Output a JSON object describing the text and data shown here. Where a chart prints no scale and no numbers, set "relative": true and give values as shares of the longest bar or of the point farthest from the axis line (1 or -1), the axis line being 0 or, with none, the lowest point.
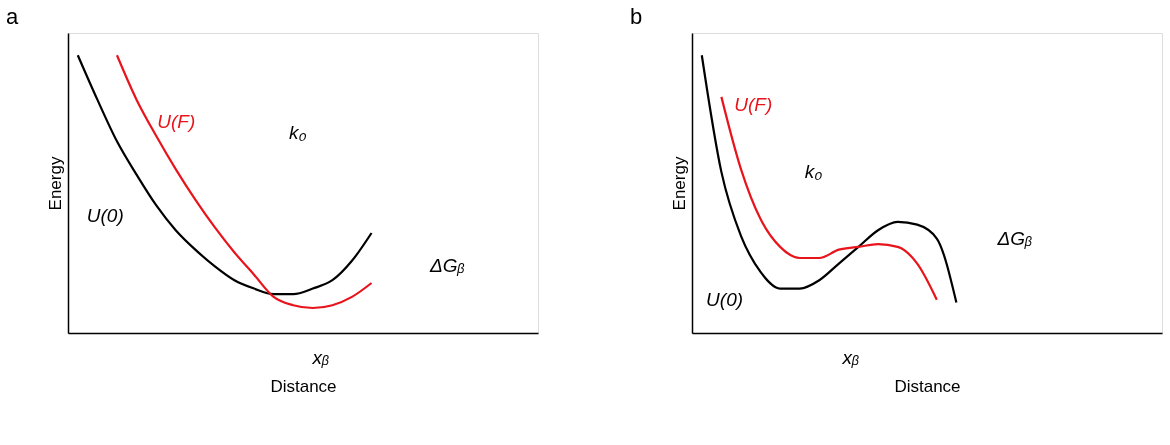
{
  "chart_data": [
    {
      "type": "line",
      "title": "a",
      "xlabel": "Distance",
      "ylabel": "Energy",
      "relative": true,
      "legend": false,
      "grid": false,
      "categories": [
        null,
        null,
        null,
        null,
        null,
        null,
        null,
        null,
        null,
        null,
        null,
        null,
        null,
        null,
        null,
        null,
        null,
        null,
        null,
        null,
        null,
        null,
        null,
        null
      ],
      "series": [
        {
          "name": "U(0)",
          "color": "#000000",
          "values": [
            1.0,
            0.84,
            0.69,
            0.57,
            0.46,
            0.37,
            0.3,
            0.24,
            0.19,
            0.16,
            0.14,
            0.14,
            0.16,
            0.19,
            0.26,
            0.36,
            null,
            null,
            null,
            null,
            null,
            null,
            null,
            null
          ]
        },
        {
          "name": "U(F)",
          "color": "#e8141c",
          "values": [
            null,
            null,
            1.0,
            0.84,
            0.71,
            0.59,
            0.48,
            0.38,
            0.29,
            0.21,
            0.13,
            0.1,
            0.09,
            0.1,
            0.13,
            0.18,
            null,
            null,
            null,
            null,
            null,
            null,
            null,
            null
          ]
        }
      ],
      "annotations": [
        "k₀",
        "ΔGᵦ",
        "xᵦ"
      ]
    },
    {
      "type": "line",
      "title": "b",
      "xlabel": "Distance",
      "ylabel": "Energy",
      "relative": true,
      "legend": false,
      "grid": false,
      "categories": [
        null,
        null,
        null,
        null,
        null,
        null,
        null,
        null,
        null,
        null,
        null,
        null,
        null,
        null,
        null,
        null,
        null,
        null,
        null,
        null,
        null,
        null,
        null,
        null
      ],
      "series": [
        {
          "name": "U(0)",
          "color": "#000000",
          "values": [
            1.0,
            0.58,
            0.35,
            0.22,
            0.16,
            0.16,
            0.19,
            0.25,
            0.31,
            0.37,
            0.4,
            0.39,
            0.34,
            0.11,
            null,
            null,
            null,
            null,
            null,
            null,
            null,
            null,
            null,
            null
          ]
        },
        {
          "name": "U(F)",
          "color": "#e8141c",
          "values": [
            null,
            0.85,
            0.59,
            0.41,
            0.31,
            0.27,
            0.27,
            0.3,
            0.31,
            0.32,
            0.31,
            0.25,
            0.12,
            null,
            null,
            null,
            null,
            null,
            null,
            null,
            null,
            null,
            null,
            null
          ]
        }
      ],
      "annotations": [
        "k₀",
        "ΔGᵦ",
        "xᵦ"
      ]
    }
  ]
}
